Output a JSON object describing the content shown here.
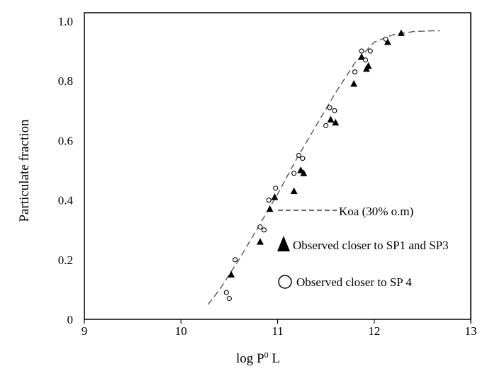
{
  "chart_data": {
    "type": "scatter",
    "xlabel": "log P",
    "xlabel_sup": "0",
    "xlabel_tail": " L",
    "ylabel": "Particulate fraction",
    "xlim": [
      9,
      13
    ],
    "ylim": [
      0,
      1.0
    ],
    "x_ticks": [
      "9",
      "10",
      "11",
      "12",
      "13"
    ],
    "y_ticks": [
      "0",
      "0.2",
      "0.4",
      "0.6",
      "0.8",
      "1.0"
    ],
    "legend_position": "center-right",
    "series": [
      {
        "name": "Koa (30% o.m)",
        "kind": "line",
        "style": "dashed",
        "color": "#555555",
        "x": [
          10.28,
          10.4,
          10.6,
          10.8,
          11.0,
          11.2,
          11.4,
          11.6,
          11.8,
          12.0,
          12.2,
          12.4,
          12.6,
          12.68
        ],
        "y": [
          0.05,
          0.1,
          0.2,
          0.31,
          0.42,
          0.54,
          0.65,
          0.76,
          0.86,
          0.93,
          0.955,
          0.965,
          0.968,
          0.968
        ]
      },
      {
        "name": "Observed closer to SP1 and SP3",
        "kind": "scatter",
        "marker": "triangle-filled",
        "color": "#000000",
        "x": [
          10.52,
          10.82,
          10.92,
          10.97,
          11.17,
          11.24,
          11.27,
          11.55,
          11.6,
          11.79,
          11.87,
          11.92,
          11.94,
          12.14,
          12.28
        ],
        "y": [
          0.15,
          0.26,
          0.37,
          0.41,
          0.43,
          0.5,
          0.49,
          0.67,
          0.66,
          0.79,
          0.88,
          0.84,
          0.85,
          0.93,
          0.96
        ]
      },
      {
        "name": "Observed closer to SP 4",
        "kind": "scatter",
        "marker": "circle-open",
        "color": "#000000",
        "x": [
          10.47,
          10.5,
          10.56,
          10.82,
          10.86,
          10.91,
          10.98,
          11.17,
          11.22,
          11.26,
          11.5,
          11.54,
          11.59,
          11.8,
          11.87,
          11.91,
          11.96,
          12.12
        ],
        "y": [
          0.09,
          0.07,
          0.2,
          0.31,
          0.3,
          0.4,
          0.44,
          0.49,
          0.55,
          0.54,
          0.65,
          0.71,
          0.7,
          0.83,
          0.9,
          0.87,
          0.9,
          0.94
        ]
      }
    ]
  }
}
